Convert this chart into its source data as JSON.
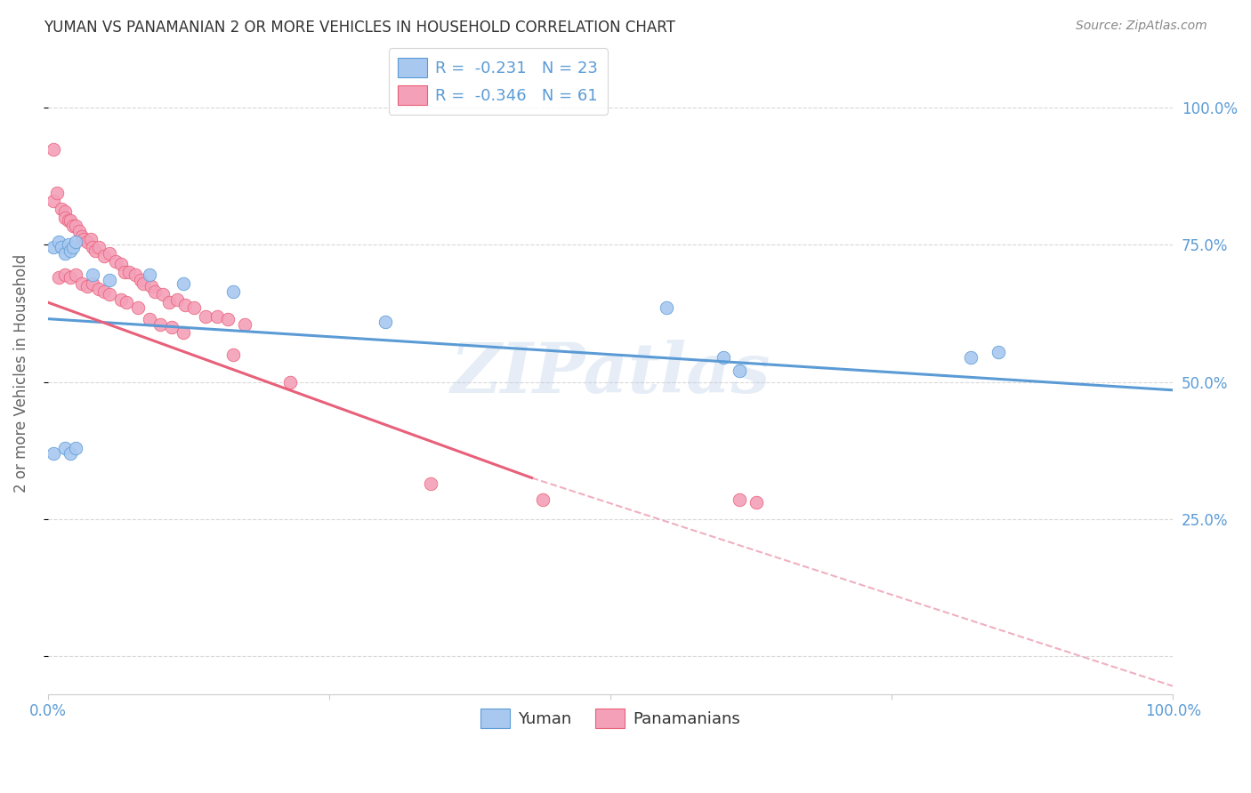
{
  "title": "YUMAN VS PANAMANIAN 2 OR MORE VEHICLES IN HOUSEHOLD CORRELATION CHART",
  "source": "Source: ZipAtlas.com",
  "ylabel": "2 or more Vehicles in Household",
  "ytick_labels": [
    "",
    "25.0%",
    "50.0%",
    "75.0%",
    "100.0%"
  ],
  "ytick_values": [
    0,
    0.25,
    0.5,
    0.75,
    1.0
  ],
  "xlim": [
    0,
    1
  ],
  "ylim": [
    -0.07,
    1.1
  ],
  "yuman_R": -0.231,
  "yuman_N": 23,
  "panamanian_R": -0.346,
  "panamanian_N": 61,
  "yuman_color": "#A8C8F0",
  "panamanian_color": "#F4A0B8",
  "line_yuman_color": "#5B9BD5",
  "line_panamanian_color": "#E8607A",
  "dashed_line_color": "#F0B0C0",
  "blue_line_x": [
    0.0,
    1.0
  ],
  "blue_line_y": [
    0.615,
    0.485
  ],
  "pink_line_x": [
    0.0,
    0.43
  ],
  "pink_line_y": [
    0.645,
    0.325
  ],
  "dashed_line_x": [
    0.43,
    1.0
  ],
  "dashed_line_y": [
    0.325,
    -0.055
  ],
  "yuman_x": [
    0.005,
    0.01,
    0.012,
    0.015,
    0.018,
    0.02,
    0.022,
    0.025,
    0.04,
    0.055,
    0.09,
    0.12,
    0.165,
    0.3,
    0.55,
    0.6,
    0.615,
    0.82,
    0.845,
    0.005,
    0.015,
    0.02,
    0.025
  ],
  "yuman_y": [
    0.745,
    0.755,
    0.745,
    0.735,
    0.75,
    0.74,
    0.745,
    0.755,
    0.695,
    0.685,
    0.695,
    0.68,
    0.665,
    0.61,
    0.635,
    0.545,
    0.52,
    0.545,
    0.555,
    0.37,
    0.38,
    0.37,
    0.38
  ],
  "panamanian_x": [
    0.005,
    0.005,
    0.008,
    0.012,
    0.015,
    0.015,
    0.018,
    0.02,
    0.022,
    0.025,
    0.028,
    0.03,
    0.032,
    0.035,
    0.038,
    0.04,
    0.042,
    0.045,
    0.05,
    0.055,
    0.06,
    0.065,
    0.068,
    0.072,
    0.078,
    0.082,
    0.085,
    0.092,
    0.095,
    0.102,
    0.108,
    0.115,
    0.122,
    0.13,
    0.14,
    0.15,
    0.16,
    0.175,
    0.01,
    0.015,
    0.02,
    0.025,
    0.03,
    0.035,
    0.04,
    0.045,
    0.05,
    0.055,
    0.065,
    0.07,
    0.08,
    0.09,
    0.1,
    0.11,
    0.12,
    0.165,
    0.215,
    0.34,
    0.44,
    0.615,
    0.63
  ],
  "panamanian_y": [
    0.925,
    0.83,
    0.845,
    0.815,
    0.81,
    0.8,
    0.795,
    0.795,
    0.785,
    0.785,
    0.775,
    0.765,
    0.76,
    0.755,
    0.76,
    0.745,
    0.74,
    0.745,
    0.73,
    0.735,
    0.72,
    0.715,
    0.7,
    0.7,
    0.695,
    0.685,
    0.68,
    0.675,
    0.665,
    0.66,
    0.645,
    0.65,
    0.64,
    0.635,
    0.62,
    0.62,
    0.615,
    0.605,
    0.69,
    0.695,
    0.69,
    0.695,
    0.68,
    0.675,
    0.68,
    0.67,
    0.665,
    0.66,
    0.65,
    0.645,
    0.635,
    0.615,
    0.605,
    0.6,
    0.59,
    0.55,
    0.5,
    0.315,
    0.285,
    0.285,
    0.28
  ],
  "watermark_text": "ZIPatlas",
  "background_color": "#FFFFFF",
  "grid_color": "#D8D8D8"
}
